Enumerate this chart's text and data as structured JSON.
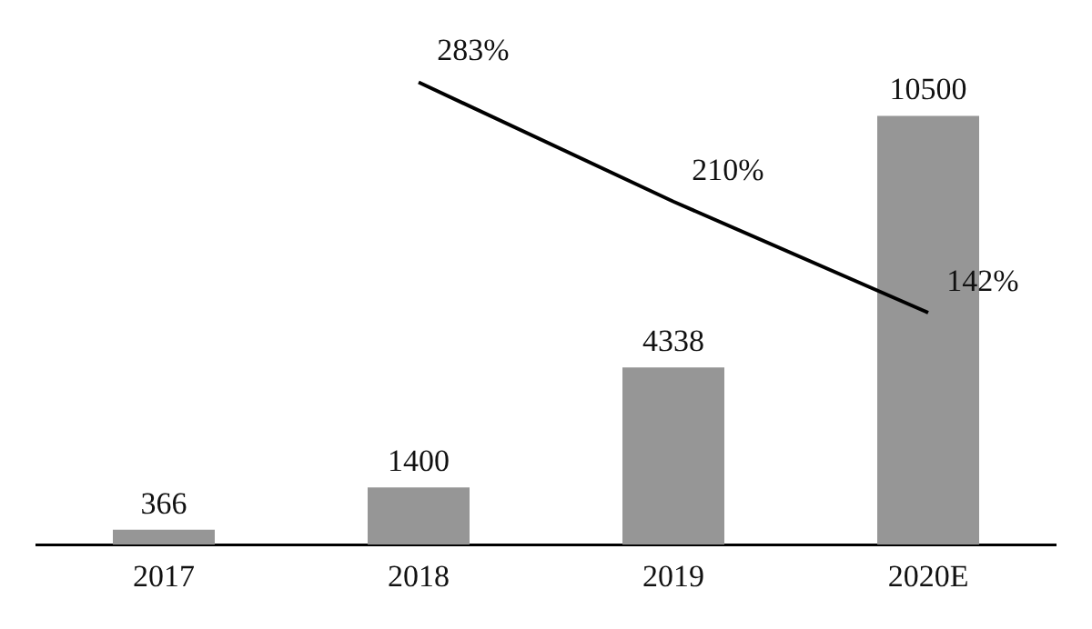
{
  "chart_data": {
    "type": "bar",
    "categories": [
      "2017",
      "2018",
      "2019",
      "2020E"
    ],
    "series": [
      {
        "color": "#969696",
        "values": [
          366,
          1400,
          4338,
          10500
        ],
        "value_labels": [
          "366",
          "1400",
          "4338",
          "10500"
        ]
      },
      {
        "type": "line",
        "axis": "y2",
        "color": "#000000",
        "values": [
          null,
          283,
          210,
          142
        ],
        "value_labels": [
          null,
          "283%",
          "210%",
          "142%"
        ]
      }
    ],
    "grid": false,
    "legend": false,
    "tick_labels": "x",
    "marker": "none",
    "line_style": "solid"
  }
}
